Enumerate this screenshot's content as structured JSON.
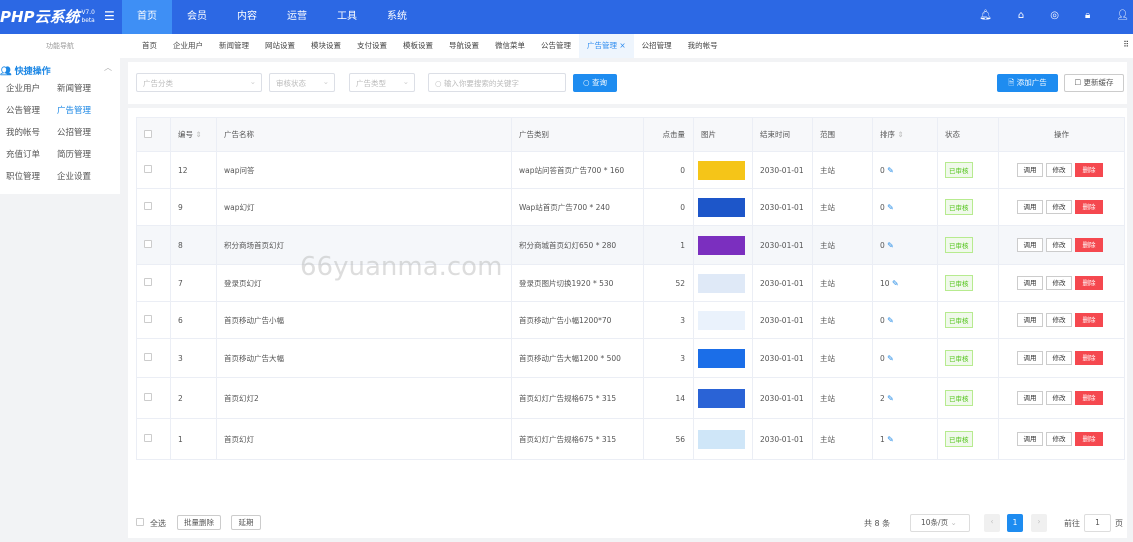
{
  "header": {
    "logo": "PHP云系统",
    "version": "V7.0",
    "beta": "beta",
    "nav": [
      "首页",
      "会员",
      "内容",
      "运营",
      "工具",
      "系统"
    ],
    "active_nav": 0,
    "icons": [
      "bell-icon",
      "home-icon",
      "compass-icon",
      "lock-icon",
      "user-icon"
    ]
  },
  "sidebar": {
    "title": "功能导航",
    "quick": "快捷操作",
    "items": [
      "企业用户",
      "新闻管理",
      "公告管理",
      "广告管理",
      "我的帐号",
      "公招管理",
      "充值订单",
      "简历管理",
      "职位管理",
      "企业设置"
    ],
    "active": 3
  },
  "tabs": [
    "首页",
    "企业用户",
    "新闻管理",
    "网站设置",
    "模块设置",
    "支付设置",
    "模板设置",
    "导航设置",
    "微信菜单",
    "公告管理",
    "广告管理 ×",
    "公招管理",
    "我的帐号"
  ],
  "active_tab": 10,
  "filter": {
    "category": "广告分类",
    "status": "审核状态",
    "type": "广告类型",
    "search_placeholder": "输入你要搜索的关键字",
    "search": "查询",
    "add": "添加广告",
    "refresh": "更新缓存"
  },
  "table": {
    "headers": [
      "编号",
      "广告名称",
      "广告类别",
      "点击量",
      "图片",
      "结束时间",
      "范围",
      "排序",
      "状态",
      "操作"
    ],
    "rows": [
      {
        "id": "12",
        "name": "wap问答",
        "type": "wap站问答首页广告700 * 160",
        "clicks": "0",
        "end": "2030-01-01",
        "scope": "主站",
        "sort": "0",
        "status": "已审核",
        "thumb": "#f5c518"
      },
      {
        "id": "9",
        "name": "wap幻灯",
        "type": "Wap站首页广告700 * 240",
        "clicks": "0",
        "end": "2030-01-01",
        "scope": "主站",
        "sort": "0",
        "status": "已审核",
        "thumb": "#1d56c9"
      },
      {
        "id": "8",
        "name": "积分商场首页幻灯",
        "type": "积分商城首页幻灯650 * 280",
        "clicks": "1",
        "end": "2030-01-01",
        "scope": "主站",
        "sort": "0",
        "status": "已审核",
        "thumb": "#7b2fbf"
      },
      {
        "id": "7",
        "name": "登录页幻灯",
        "type": "登录页图片切换1920 * 530",
        "clicks": "52",
        "end": "2030-01-01",
        "scope": "主站",
        "sort": "10",
        "status": "已审核",
        "thumb": "#dfe9f7"
      },
      {
        "id": "6",
        "name": "首页移动广告小幅",
        "type": "首页移动广告小幅1200*70",
        "clicks": "3",
        "end": "2030-01-01",
        "scope": "主站",
        "sort": "0",
        "status": "已审核",
        "thumb": "#eaf2fc"
      },
      {
        "id": "3",
        "name": "首页移动广告大幅",
        "type": "首页移动广告大幅1200 * 500",
        "clicks": "3",
        "end": "2030-01-01",
        "scope": "主站",
        "sort": "0",
        "status": "已审核",
        "thumb": "#1b6ee8"
      },
      {
        "id": "2",
        "name": "首页幻灯2",
        "type": "首页幻灯广告规格675 * 315",
        "clicks": "14",
        "end": "2030-01-01",
        "scope": "主站",
        "sort": "2",
        "status": "已审核",
        "thumb": "#2a63d6"
      },
      {
        "id": "1",
        "name": "首页幻灯",
        "type": "首页幻灯广告规格675 * 315",
        "clicks": "56",
        "end": "2030-01-01",
        "scope": "主站",
        "sort": "1",
        "status": "已审核",
        "thumb": "#cfe6f8"
      }
    ],
    "actions": [
      "调用",
      "修改",
      "删除"
    ]
  },
  "footer": {
    "select_all": "全选",
    "batch_delete": "批量删除",
    "extend": "延期",
    "total": "共 8 条",
    "page_size": "10条/页",
    "page": "1",
    "goto": "前往",
    "goto_value": "1",
    "page_unit": "页"
  },
  "watermark": "66yuanma.com"
}
